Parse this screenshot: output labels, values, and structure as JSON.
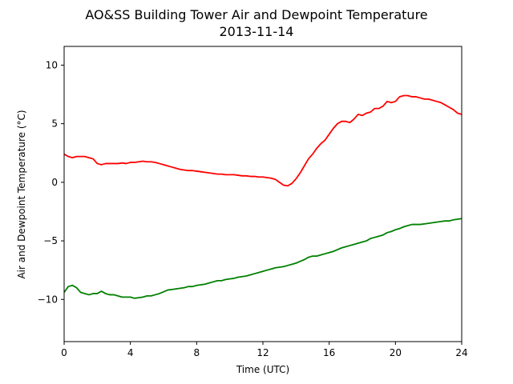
{
  "chart_data": {
    "type": "line",
    "title": "AO&SS Building Tower Air and Dewpoint Temperature",
    "subtitle": "2013-11-14",
    "xlabel": "Time (UTC)",
    "ylabel": "Air and Dewpoint Temperature (°C)",
    "xlim": [
      0,
      24
    ],
    "ylim": [
      -13.6,
      11.6
    ],
    "xticks": [
      0,
      4,
      8,
      12,
      16,
      20,
      24
    ],
    "xtick_labels": [
      "0",
      "4",
      "8",
      "12",
      "16",
      "20",
      "24"
    ],
    "yticks": [
      10,
      5,
      0,
      -5,
      -10
    ],
    "ytick_labels": [
      "10",
      "5",
      "0",
      "−5",
      "−10"
    ],
    "grid": false,
    "legend": null,
    "series": [
      {
        "color": "#ff0000",
        "x": [
          0,
          0.25,
          0.5,
          0.75,
          1.0,
          1.25,
          1.5,
          1.75,
          2.0,
          2.25,
          2.5,
          2.75,
          3.0,
          3.25,
          3.5,
          3.75,
          4.0,
          4.25,
          4.5,
          4.75,
          5.0,
          5.25,
          5.5,
          5.75,
          6.0,
          6.25,
          6.5,
          6.75,
          7.0,
          7.25,
          7.5,
          7.75,
          8.0,
          8.25,
          8.5,
          8.75,
          9.0,
          9.25,
          9.5,
          9.75,
          10.0,
          10.25,
          10.5,
          10.75,
          11.0,
          11.25,
          11.5,
          11.75,
          12.0,
          12.25,
          12.5,
          12.75,
          13.0,
          13.25,
          13.5,
          13.75,
          14.0,
          14.25,
          14.5,
          14.75,
          15.0,
          15.25,
          15.5,
          15.75,
          16.0,
          16.25,
          16.5,
          16.75,
          17.0,
          17.25,
          17.5,
          17.75,
          18.0,
          18.25,
          18.5,
          18.75,
          19.0,
          19.25,
          19.5,
          19.75,
          20.0,
          20.25,
          20.5,
          20.75,
          21.0,
          21.25,
          21.5,
          21.75,
          22.0,
          22.25,
          22.5,
          22.75,
          23.0,
          23.25,
          23.5,
          23.75,
          24.0
        ],
        "values": [
          2.4,
          2.2,
          2.1,
          2.2,
          2.2,
          2.2,
          2.1,
          2.0,
          1.6,
          1.5,
          1.6,
          1.6,
          1.6,
          1.6,
          1.65,
          1.6,
          1.7,
          1.7,
          1.75,
          1.8,
          1.75,
          1.75,
          1.7,
          1.6,
          1.5,
          1.4,
          1.3,
          1.2,
          1.1,
          1.05,
          1.0,
          1.0,
          0.95,
          0.9,
          0.85,
          0.8,
          0.75,
          0.7,
          0.7,
          0.65,
          0.65,
          0.65,
          0.6,
          0.55,
          0.55,
          0.5,
          0.5,
          0.45,
          0.45,
          0.4,
          0.35,
          0.25,
          0.0,
          -0.25,
          -0.3,
          -0.1,
          0.3,
          0.8,
          1.4,
          2.0,
          2.4,
          2.9,
          3.3,
          3.6,
          4.1,
          4.6,
          5.0,
          5.2,
          5.2,
          5.1,
          5.4,
          5.8,
          5.7,
          5.9,
          6.0,
          6.3,
          6.3,
          6.5,
          6.9,
          6.8,
          6.9,
          7.3,
          7.4,
          7.4,
          7.3,
          7.3,
          7.2,
          7.1,
          7.1,
          7.0,
          6.9,
          6.8,
          6.6,
          6.4,
          6.2,
          5.9,
          5.8
        ]
      },
      {
        "color": "#008000",
        "x": [
          0,
          0.25,
          0.5,
          0.75,
          1.0,
          1.25,
          1.5,
          1.75,
          2.0,
          2.25,
          2.5,
          2.75,
          3.0,
          3.25,
          3.5,
          3.75,
          4.0,
          4.25,
          4.5,
          4.75,
          5.0,
          5.25,
          5.5,
          5.75,
          6.0,
          6.25,
          6.5,
          6.75,
          7.0,
          7.25,
          7.5,
          7.75,
          8.0,
          8.25,
          8.5,
          8.75,
          9.0,
          9.25,
          9.5,
          9.75,
          10.0,
          10.25,
          10.5,
          10.75,
          11.0,
          11.25,
          11.5,
          11.75,
          12.0,
          12.25,
          12.5,
          12.75,
          13.0,
          13.25,
          13.5,
          13.75,
          14.0,
          14.25,
          14.5,
          14.75,
          15.0,
          15.25,
          15.5,
          15.75,
          16.0,
          16.25,
          16.5,
          16.75,
          17.0,
          17.25,
          17.5,
          17.75,
          18.0,
          18.25,
          18.5,
          18.75,
          19.0,
          19.25,
          19.5,
          19.75,
          20.0,
          20.25,
          20.5,
          20.75,
          21.0,
          21.25,
          21.5,
          21.75,
          22.0,
          22.25,
          22.5,
          22.75,
          23.0,
          23.25,
          23.5,
          23.75,
          24.0
        ],
        "values": [
          -9.4,
          -8.9,
          -8.8,
          -9.0,
          -9.4,
          -9.5,
          -9.6,
          -9.5,
          -9.5,
          -9.3,
          -9.5,
          -9.6,
          -9.6,
          -9.7,
          -9.8,
          -9.8,
          -9.8,
          -9.9,
          -9.85,
          -9.8,
          -9.7,
          -9.7,
          -9.6,
          -9.5,
          -9.35,
          -9.2,
          -9.15,
          -9.1,
          -9.05,
          -9.0,
          -8.9,
          -8.9,
          -8.8,
          -8.75,
          -8.7,
          -8.6,
          -8.5,
          -8.4,
          -8.4,
          -8.3,
          -8.25,
          -8.2,
          -8.1,
          -8.05,
          -8.0,
          -7.9,
          -7.8,
          -7.7,
          -7.6,
          -7.5,
          -7.4,
          -7.3,
          -7.25,
          -7.2,
          -7.1,
          -7.0,
          -6.9,
          -6.75,
          -6.6,
          -6.4,
          -6.3,
          -6.3,
          -6.2,
          -6.1,
          -6.0,
          -5.9,
          -5.75,
          -5.6,
          -5.5,
          -5.4,
          -5.3,
          -5.2,
          -5.1,
          -5.0,
          -4.8,
          -4.7,
          -4.6,
          -4.5,
          -4.3,
          -4.2,
          -4.05,
          -3.95,
          -3.8,
          -3.7,
          -3.6,
          -3.6,
          -3.6,
          -3.55,
          -3.5,
          -3.45,
          -3.4,
          -3.35,
          -3.3,
          -3.3,
          -3.2,
          -3.15,
          -3.1
        ]
      }
    ]
  }
}
